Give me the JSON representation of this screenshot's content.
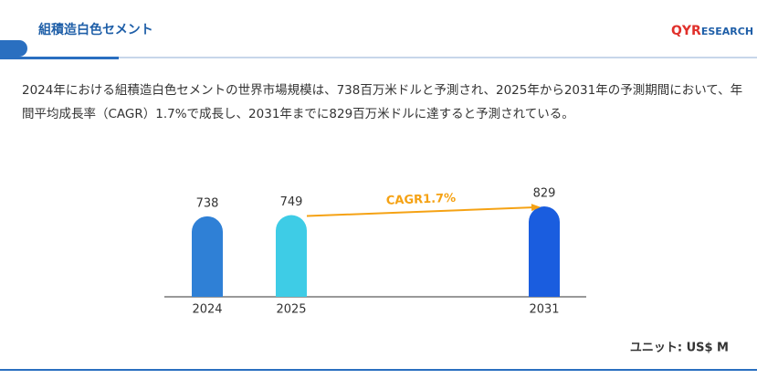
{
  "header": {
    "title": "組積造白色セメント",
    "logo_mark": "QYR",
    "logo_text": "ESEARCH"
  },
  "description": "2024年における組積造白色セメントの世界市場規模は、738百万米ドルと予測され、2025年から2031年の予測期間において、年間平均成長率（CAGR）1.7%で成長し、2031年までに829百万米ドルに達すると予測されている。",
  "chart_data": {
    "type": "bar",
    "categories": [
      "2024",
      "2025",
      "2031"
    ],
    "values": [
      738,
      749,
      829
    ],
    "colors": [
      "#2f80d6",
      "#3ecce6",
      "#1a5ddf"
    ],
    "annotation": "CAGR1.7%",
    "annotation_color": "#f5a214",
    "unit": "ユニット: US$ M"
  }
}
